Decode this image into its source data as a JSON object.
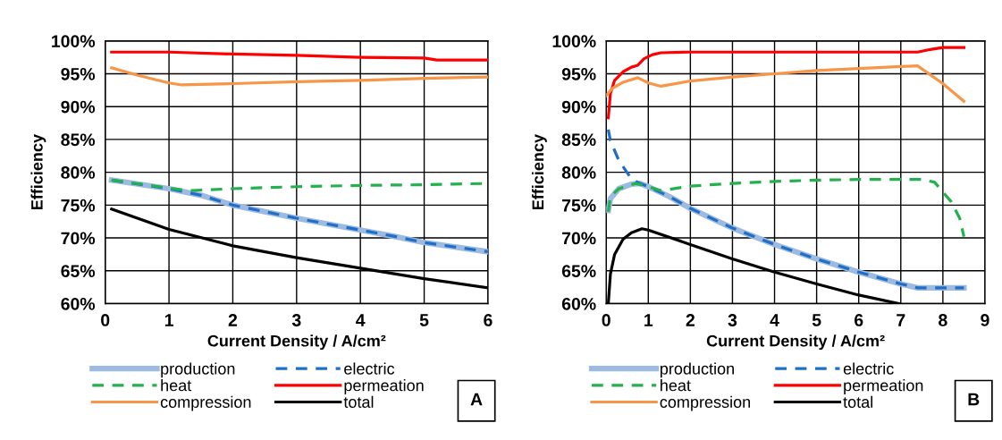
{
  "chart_data": [
    {
      "type": "line",
      "xlabel": "Current Density / A/cm²",
      "ylabel": "Efficiency",
      "xlim": [
        0,
        6
      ],
      "xticks": [
        0,
        1,
        2,
        3,
        4,
        5,
        6
      ],
      "ylim": [
        60,
        100
      ],
      "yticks": [
        {
          "value": 60,
          "label": "60%"
        },
        {
          "value": 65,
          "label": "65%"
        },
        {
          "value": 70,
          "label": "70%"
        },
        {
          "value": 75,
          "label": "75%"
        },
        {
          "value": 80,
          "label": "80%"
        },
        {
          "value": 85,
          "label": "85%"
        },
        {
          "value": 90,
          "label": "90%"
        },
        {
          "value": 95,
          "label": "95%"
        },
        {
          "value": 100,
          "label": "100%"
        }
      ],
      "grid": true,
      "legend": "bottom",
      "annotations": [
        "A"
      ],
      "series": [
        {
          "name": "production",
          "color": "#9dbbe0",
          "x": [
            0.1,
            1,
            1.5,
            2,
            3,
            4,
            4.5,
            5,
            6
          ],
          "values": [
            78.8,
            77.5,
            76.5,
            75,
            73,
            71.2,
            70.3,
            69.3,
            67.9
          ]
        },
        {
          "name": "electric",
          "color": "#1f6fc6",
          "line_style": "dashed",
          "x": [
            0.1,
            1,
            1.5,
            2,
            3,
            4,
            4.5,
            5,
            6
          ],
          "values": [
            78.8,
            77.5,
            76.5,
            75,
            73,
            71.2,
            70.3,
            69.3,
            67.9
          ]
        },
        {
          "name": "heat",
          "color": "#22b14c",
          "line_style": "dashed",
          "x": [
            0.1,
            1,
            1.3,
            2,
            3,
            4,
            5,
            6
          ],
          "values": [
            78.8,
            77.6,
            77.2,
            77.5,
            77.8,
            78,
            78.1,
            78.3
          ]
        },
        {
          "name": "permeation",
          "color": "#ff0000",
          "x": [
            0.1,
            1,
            2,
            3,
            4,
            5,
            5.2,
            6
          ],
          "values": [
            98.3,
            98.3,
            98,
            97.8,
            97.5,
            97.4,
            97.1,
            97.1
          ]
        },
        {
          "name": "compression",
          "color": "#f79646",
          "x": [
            0.1,
            0.5,
            1,
            1.2,
            2,
            3,
            4,
            5,
            6
          ],
          "values": [
            95.9,
            94.8,
            93.6,
            93.3,
            93.5,
            93.8,
            94,
            94.3,
            94.5
          ]
        },
        {
          "name": "total",
          "color": "#000000",
          "x": [
            0.1,
            1,
            2,
            3,
            4,
            5,
            6
          ],
          "values": [
            74.4,
            71.3,
            68.8,
            67,
            65.4,
            63.8,
            62.4
          ]
        }
      ]
    },
    {
      "type": "line",
      "xlabel": "Current Density / A/cm²",
      "ylabel": "Efficiency",
      "xlim": [
        0,
        9
      ],
      "xticks": [
        0,
        1,
        2,
        3,
        4,
        5,
        6,
        7,
        8,
        9
      ],
      "ylim": [
        60,
        100
      ],
      "yticks": [
        {
          "value": 60,
          "label": "60%"
        },
        {
          "value": 65,
          "label": "65%"
        },
        {
          "value": 70,
          "label": "70%"
        },
        {
          "value": 75,
          "label": "75%"
        },
        {
          "value": 80,
          "label": "80%"
        },
        {
          "value": 85,
          "label": "85%"
        },
        {
          "value": 90,
          "label": "90%"
        },
        {
          "value": 95,
          "label": "95%"
        },
        {
          "value": 100,
          "label": "100%"
        }
      ],
      "grid": true,
      "legend": "bottom",
      "annotations": [
        "B"
      ],
      "series": [
        {
          "name": "production",
          "color": "#9dbbe0",
          "x": [
            0.05,
            0.1,
            0.3,
            0.6,
            0.8,
            1,
            1.5,
            2,
            3,
            4,
            5,
            6,
            7,
            7.4,
            8.5
          ],
          "values": [
            74.2,
            76,
            77.5,
            78.2,
            78.3,
            77.8,
            76.3,
            74.5,
            71.5,
            69,
            66.8,
            64.8,
            63,
            62.4,
            62.4
          ]
        },
        {
          "name": "electric",
          "color": "#1f6fc6",
          "line_style": "dashed",
          "x": [
            0.05,
            0.1,
            0.3,
            0.6,
            0.8,
            1,
            1.5,
            2,
            3,
            4,
            5,
            6,
            7,
            7.4,
            8.5
          ],
          "values": [
            86.5,
            84.8,
            81.8,
            79,
            78.3,
            77.8,
            76.3,
            74.5,
            71.5,
            69,
            66.8,
            64.8,
            63,
            62.4,
            62.4
          ]
        },
        {
          "name": "heat",
          "color": "#22b14c",
          "line_style": "dashed",
          "x": [
            0.05,
            0.1,
            0.3,
            0.7,
            1,
            1.3,
            2,
            3,
            4,
            5,
            6,
            7,
            7.5,
            7.8,
            8,
            8.2,
            8.4,
            8.5
          ],
          "values": [
            74,
            76.3,
            77.5,
            78.3,
            77.8,
            77.2,
            77.9,
            78.3,
            78.6,
            78.8,
            78.9,
            78.9,
            78.9,
            78.5,
            77,
            75.5,
            73,
            70.2
          ]
        },
        {
          "name": "permeation",
          "color": "#ff0000",
          "x": [
            0.05,
            0.1,
            0.2,
            0.4,
            0.6,
            0.75,
            0.9,
            1.1,
            1.3,
            2,
            7.4,
            7.7,
            8,
            8.5
          ],
          "values": [
            88.3,
            92,
            94,
            95.3,
            96,
            96.3,
            97.3,
            97.9,
            98.2,
            98.3,
            98.3,
            98.7,
            99,
            99
          ]
        },
        {
          "name": "compression",
          "color": "#f79646",
          "x": [
            0,
            0.15,
            0.4,
            0.75,
            1,
            1.3,
            2,
            3,
            4,
            5,
            6,
            7,
            7.4,
            8,
            8.5
          ],
          "values": [
            91.7,
            92.8,
            93.7,
            94.4,
            93.6,
            93.1,
            93.9,
            94.5,
            95,
            95.5,
            95.8,
            96.1,
            96.2,
            93.5,
            90.8
          ]
        },
        {
          "name": "total",
          "color": "#000000",
          "x": [
            0.05,
            0.1,
            0.2,
            0.4,
            0.6,
            0.85,
            1,
            2,
            3,
            4,
            5,
            6,
            6.95
          ],
          "values": [
            60,
            64.5,
            67.5,
            69.8,
            70.8,
            71.4,
            71.2,
            69,
            66.8,
            64.8,
            63,
            61.3,
            60
          ]
        }
      ]
    }
  ]
}
